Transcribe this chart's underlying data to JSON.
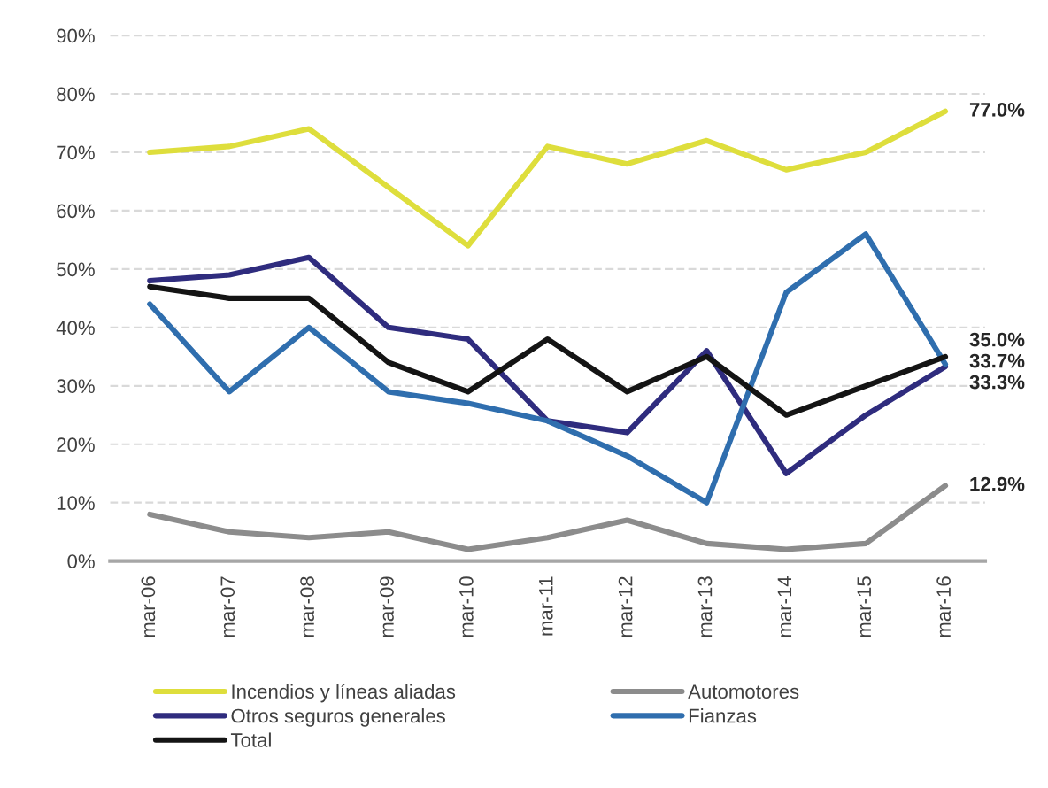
{
  "chart_data": {
    "type": "line",
    "categories": [
      "mar-06",
      "mar-07",
      "mar-08",
      "mar-09",
      "mar-10",
      "mar-11",
      "mar-12",
      "mar-13",
      "mar-14",
      "mar-15",
      "mar-16"
    ],
    "series": [
      {
        "name": "Incendios y líneas aliadas",
        "color": "#dede3c",
        "values": [
          70,
          71,
          74,
          64,
          54,
          71,
          68,
          72,
          67,
          70,
          77.0
        ],
        "value_labels": [
          null,
          null,
          null,
          null,
          null,
          null,
          null,
          null,
          null,
          null,
          "77.0%"
        ]
      },
      {
        "name": "Automotores",
        "color": "#8c8c8c",
        "values": [
          8,
          5,
          4,
          5,
          2,
          4,
          7,
          3,
          2,
          3,
          12.9
        ],
        "value_labels": [
          null,
          null,
          null,
          null,
          null,
          null,
          null,
          null,
          null,
          null,
          "12.9%"
        ]
      },
      {
        "name": "Otros seguros generales",
        "color": "#2f2c7e",
        "values": [
          48,
          49,
          52,
          40,
          38,
          24,
          22,
          36,
          15,
          25,
          33.3
        ],
        "value_labels": [
          null,
          null,
          null,
          null,
          null,
          null,
          null,
          null,
          null,
          null,
          "33.3%"
        ]
      },
      {
        "name": "Fianzas",
        "color": "#2f6eae",
        "values": [
          44,
          29,
          40,
          29,
          27,
          24,
          18,
          10,
          46,
          56,
          33.7
        ],
        "value_labels": [
          null,
          null,
          null,
          null,
          null,
          null,
          null,
          null,
          null,
          null,
          "33.7%"
        ]
      },
      {
        "name": "Total",
        "color": "#141414",
        "values": [
          47,
          45,
          45,
          34,
          29,
          38,
          29,
          35,
          25,
          30,
          35.0
        ],
        "value_labels": [
          null,
          null,
          null,
          null,
          null,
          null,
          null,
          null,
          null,
          null,
          "35.0%"
        ]
      }
    ],
    "ylim": [
      0,
      90
    ],
    "yticks": [
      {
        "value": 0,
        "label": "0%"
      },
      {
        "value": 10,
        "label": "10%"
      },
      {
        "value": 20,
        "label": "20%"
      },
      {
        "value": 30,
        "label": "30%"
      },
      {
        "value": 40,
        "label": "40%"
      },
      {
        "value": 50,
        "label": "50%"
      },
      {
        "value": 60,
        "label": "60%"
      },
      {
        "value": 70,
        "label": "70%"
      },
      {
        "value": 80,
        "label": "80%"
      },
      {
        "value": 90,
        "label": "90%"
      }
    ],
    "grid": "y",
    "legend": "bottom"
  }
}
